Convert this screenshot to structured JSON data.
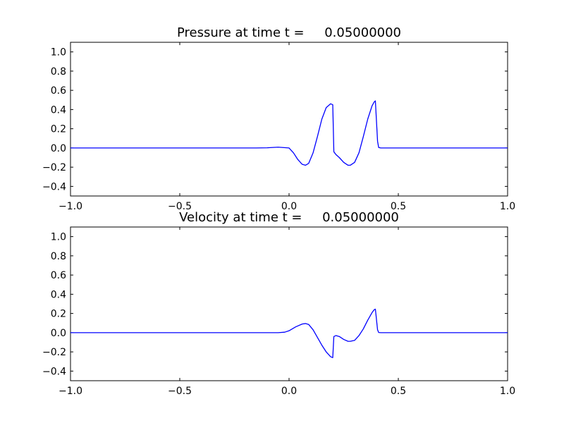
{
  "chart_data": [
    {
      "type": "line",
      "title": "Pressure at time t =     0.05000000",
      "xlabel": "",
      "ylabel": "",
      "xlim": [
        -1.0,
        1.0
      ],
      "ylim": [
        -0.5,
        1.1
      ],
      "grid": false,
      "legend": false,
      "xticks": [
        -1.0,
        -0.5,
        0.0,
        0.5,
        1.0
      ],
      "xtick_labels": [
        "−1.0",
        "−0.5",
        "0.0",
        "0.5",
        "1.0"
      ],
      "yticks": [
        -0.4,
        -0.2,
        0.0,
        0.2,
        0.4,
        0.6,
        0.8,
        1.0
      ],
      "ytick_labels": [
        "−0.4",
        "−0.2",
        "0.0",
        "0.2",
        "0.4",
        "0.6",
        "0.8",
        "1.0"
      ],
      "series": [
        {
          "name": "pressure",
          "color": "#0000ff",
          "x": [
            -1.0,
            -0.5,
            -0.2,
            -0.15,
            -0.1,
            -0.05,
            0.0,
            0.02,
            0.04,
            0.06,
            0.075,
            0.09,
            0.11,
            0.13,
            0.15,
            0.17,
            0.19,
            0.2,
            0.205,
            0.215,
            0.23,
            0.25,
            0.27,
            0.28,
            0.3,
            0.32,
            0.34,
            0.36,
            0.38,
            0.39,
            0.395,
            0.405,
            0.41,
            0.42,
            0.5,
            0.7,
            1.0
          ],
          "y": [
            0.0,
            0.0,
            0.0,
            0.0,
            0.002,
            0.008,
            0.0,
            -0.05,
            -0.12,
            -0.17,
            -0.18,
            -0.16,
            -0.05,
            0.12,
            0.3,
            0.42,
            0.46,
            0.45,
            -0.04,
            -0.07,
            -0.1,
            -0.15,
            -0.18,
            -0.18,
            -0.15,
            -0.05,
            0.12,
            0.3,
            0.44,
            0.48,
            0.49,
            0.07,
            0.005,
            0.0,
            0.0,
            0.0,
            0.0
          ]
        }
      ]
    },
    {
      "type": "line",
      "title": "Velocity at time t =     0.05000000",
      "xlabel": "",
      "ylabel": "",
      "xlim": [
        -1.0,
        1.0
      ],
      "ylim": [
        -0.5,
        1.1
      ],
      "grid": false,
      "legend": false,
      "xticks": [
        -1.0,
        -0.5,
        0.0,
        0.5,
        1.0
      ],
      "xtick_labels": [
        "−1.0",
        "−0.5",
        "0.0",
        "0.5",
        "1.0"
      ],
      "yticks": [
        -0.4,
        -0.2,
        0.0,
        0.2,
        0.4,
        0.6,
        0.8,
        1.0
      ],
      "ytick_labels": [
        "−0.4",
        "−0.2",
        "0.0",
        "0.2",
        "0.4",
        "0.6",
        "0.8",
        "1.0"
      ],
      "series": [
        {
          "name": "velocity",
          "color": "#0000ff",
          "x": [
            -1.0,
            -0.5,
            -0.2,
            -0.15,
            -0.1,
            -0.05,
            -0.02,
            0.0,
            0.03,
            0.06,
            0.075,
            0.09,
            0.11,
            0.13,
            0.15,
            0.17,
            0.19,
            0.2,
            0.205,
            0.215,
            0.23,
            0.25,
            0.27,
            0.28,
            0.3,
            0.32,
            0.34,
            0.36,
            0.38,
            0.39,
            0.395,
            0.405,
            0.41,
            0.42,
            0.5,
            0.7,
            1.0
          ],
          "y": [
            0.0,
            0.0,
            0.0,
            0.0,
            0.0,
            0.0,
            0.005,
            0.02,
            0.06,
            0.09,
            0.095,
            0.085,
            0.03,
            -0.05,
            -0.13,
            -0.2,
            -0.25,
            -0.26,
            -0.04,
            -0.03,
            -0.04,
            -0.07,
            -0.09,
            -0.09,
            -0.08,
            -0.03,
            0.04,
            0.13,
            0.21,
            0.24,
            0.245,
            0.03,
            0.002,
            0.0,
            0.0,
            0.0,
            0.0
          ]
        }
      ]
    }
  ]
}
